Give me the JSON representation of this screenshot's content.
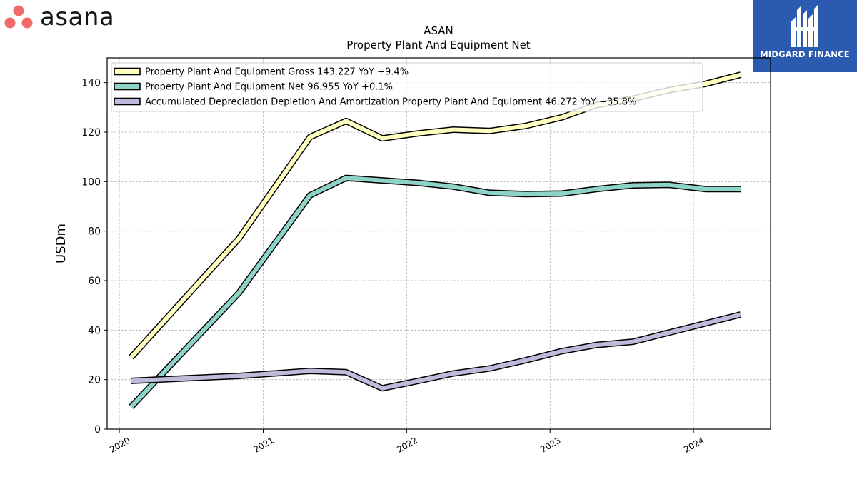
{
  "logos": {
    "left": {
      "text": "asana",
      "colors": [
        "#f06a6a"
      ]
    },
    "right": {
      "text": "MIDGARD FINANCE",
      "background": "#2a5bb0"
    }
  },
  "chart_data": {
    "type": "line",
    "title": "ASAN",
    "subtitle": "Property Plant And Equipment Net",
    "xlabel": "",
    "ylabel": "USDm",
    "ylim": [
      0,
      150
    ],
    "xlim": [
      "2019-12-01",
      "2024-07-15"
    ],
    "x_ticks": [
      "2020",
      "2021",
      "2022",
      "2023",
      "2024"
    ],
    "y_ticks": [
      "0",
      "20",
      "40",
      "60",
      "80",
      "100",
      "120",
      "140"
    ],
    "grid": true,
    "legend_position": "top-left",
    "x": [
      "2020-01-31",
      "2020-10-31",
      "2021-04-30",
      "2021-07-31",
      "2021-10-31",
      "2022-01-31",
      "2022-04-30",
      "2022-07-31",
      "2022-10-31",
      "2023-01-31",
      "2023-04-30",
      "2023-07-31",
      "2023-10-31",
      "2024-01-31",
      "2024-04-30"
    ],
    "series": [
      {
        "name": "Property Plant And Equipment Gross",
        "legend_label": "Property Plant And Equipment Gross  143.227 YoY +9.4%",
        "color": "#ffffbf",
        "values": [
          29,
          77,
          118,
          124.5,
          117.5,
          119.5,
          121,
          120.5,
          122.5,
          126,
          131,
          133.5,
          137,
          139.5,
          143.2
        ]
      },
      {
        "name": "Property Plant And Equipment Net",
        "legend_label": "Property Plant And Equipment Net  96.955 YoY +0.1%",
        "color": "#8dd3c7",
        "values": [
          9,
          55,
          94.5,
          101.5,
          100.5,
          99.5,
          98,
          95.5,
          95,
          95.2,
          97,
          98.5,
          98.7,
          97,
          97
        ]
      },
      {
        "name": "Accumulated Depreciation Depletion And Amortization Property Plant And Equipment",
        "legend_label": "Accumulated Depreciation Depletion And Amortization Property Plant And Equipment  46.272 YoY +35.8%",
        "color": "#bebada",
        "values": [
          19.5,
          21.5,
          23.5,
          23,
          16.5,
          19.5,
          22.5,
          24.5,
          27.8,
          31.5,
          34,
          35.3,
          39,
          42.7,
          46.3
        ]
      }
    ]
  }
}
